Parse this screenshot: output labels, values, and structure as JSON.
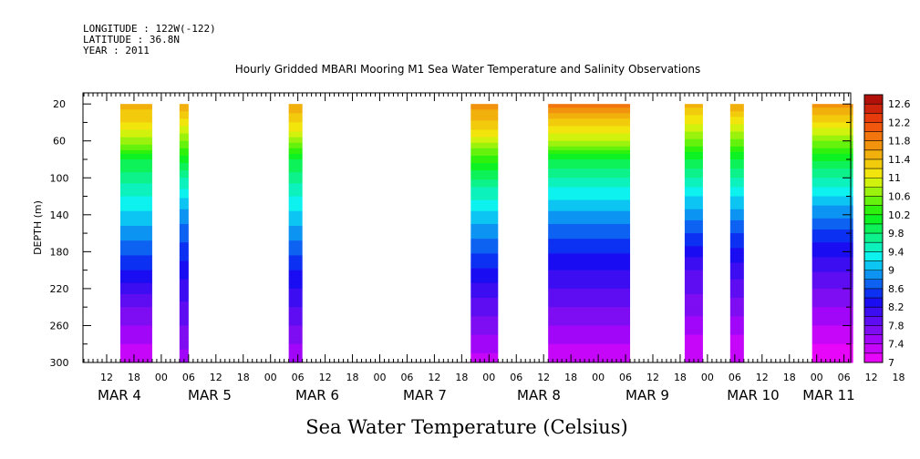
{
  "header": {
    "longitude": "LONGITUDE : 122W(-122)",
    "latitude": "LATITUDE : 36.8N",
    "year": "YEAR : 2011"
  },
  "chart_data": {
    "type": "heatmap",
    "title": "Hourly Gridded MBARI Mooring M1 Sea Water Temperature and Salinity Observations",
    "xlabel": "Sea Water Temperature (Celsius)",
    "ylabel": "DEPTH (m)",
    "y_ticks": [
      20,
      60,
      100,
      140,
      180,
      220,
      260,
      300
    ],
    "ylim": [
      300,
      8
    ],
    "x_hour_ticks": [
      "12",
      "18",
      "00",
      "06",
      "12",
      "18",
      "00",
      "06",
      "12",
      "18",
      "00",
      "06",
      "12",
      "18",
      "00",
      "06",
      "12",
      "18",
      "00",
      "06",
      "12",
      "18",
      "00",
      "06",
      "12",
      "18",
      "00",
      "06",
      "12",
      "18",
      "00",
      "06"
    ],
    "x_day_labels": [
      "MAR 4",
      "MAR 5",
      "MAR 6",
      "MAR 7",
      "MAR 8",
      "MAR 9",
      "MAR 10",
      "MAR 11"
    ],
    "colorbar": {
      "min": 7.0,
      "max": 12.8,
      "step": 0.2,
      "tick_labels": [
        "12.6",
        "12.2",
        "11.8",
        "11.4",
        "11",
        "10.6",
        "10.2",
        "9.8",
        "9.4",
        "9",
        "8.6",
        "8.2",
        "7.8",
        "7.4",
        "7"
      ]
    },
    "series": [
      {
        "start": "MAR 4 15:00",
        "end": "MAR 4 22:00",
        "profile": [
          {
            "depth": 20,
            "temp": 11.5
          },
          {
            "depth": 40,
            "temp": 11.2
          },
          {
            "depth": 65,
            "temp": 10.6
          },
          {
            "depth": 80,
            "temp": 10.0
          },
          {
            "depth": 120,
            "temp": 9.4
          },
          {
            "depth": 160,
            "temp": 8.9
          },
          {
            "depth": 200,
            "temp": 8.4
          },
          {
            "depth": 240,
            "temp": 7.8
          },
          {
            "depth": 270,
            "temp": 7.5
          },
          {
            "depth": 300,
            "temp": 7.2
          }
        ]
      },
      {
        "start": "MAR 5 04:00",
        "end": "MAR 5 06:00",
        "profile": [
          {
            "depth": 20,
            "temp": 11.6
          },
          {
            "depth": 60,
            "temp": 10.6
          },
          {
            "depth": 100,
            "temp": 9.6
          },
          {
            "depth": 140,
            "temp": 8.9
          },
          {
            "depth": 180,
            "temp": 8.5
          },
          {
            "depth": 220,
            "temp": 8.1
          },
          {
            "depth": 260,
            "temp": 7.8
          },
          {
            "depth": 300,
            "temp": 7.5
          }
        ]
      },
      {
        "start": "MAR 6 04:00",
        "end": "MAR 6 07:00",
        "profile": [
          {
            "depth": 20,
            "temp": 11.6
          },
          {
            "depth": 50,
            "temp": 11.0
          },
          {
            "depth": 80,
            "temp": 10.0
          },
          {
            "depth": 120,
            "temp": 9.4
          },
          {
            "depth": 160,
            "temp": 8.9
          },
          {
            "depth": 200,
            "temp": 8.4
          },
          {
            "depth": 240,
            "temp": 8.0
          },
          {
            "depth": 270,
            "temp": 7.7
          },
          {
            "depth": 300,
            "temp": 7.4
          }
        ]
      },
      {
        "start": "MAR 7 20:00",
        "end": "MAR 8 02:00",
        "profile": [
          {
            "depth": 20,
            "temp": 11.7
          },
          {
            "depth": 45,
            "temp": 11.3
          },
          {
            "depth": 75,
            "temp": 10.4
          },
          {
            "depth": 110,
            "temp": 9.6
          },
          {
            "depth": 150,
            "temp": 9.0
          },
          {
            "depth": 190,
            "temp": 8.5
          },
          {
            "depth": 230,
            "temp": 8.0
          },
          {
            "depth": 270,
            "temp": 7.6
          },
          {
            "depth": 300,
            "temp": 7.3
          }
        ]
      },
      {
        "start": "MAR 8 13:00",
        "end": "MAR 9 07:00",
        "profile": [
          {
            "depth": 20,
            "temp": 11.9
          },
          {
            "depth": 40,
            "temp": 11.3
          },
          {
            "depth": 60,
            "temp": 10.8
          },
          {
            "depth": 80,
            "temp": 10.0
          },
          {
            "depth": 110,
            "temp": 9.4
          },
          {
            "depth": 150,
            "temp": 8.8
          },
          {
            "depth": 190,
            "temp": 8.3
          },
          {
            "depth": 230,
            "temp": 7.9
          },
          {
            "depth": 270,
            "temp": 7.5
          },
          {
            "depth": 300,
            "temp": 7.2
          }
        ]
      },
      {
        "start": "MAR 9 19:00",
        "end": "MAR 9 23:00",
        "profile": [
          {
            "depth": 20,
            "temp": 11.5
          },
          {
            "depth": 50,
            "temp": 10.8
          },
          {
            "depth": 80,
            "temp": 10.0
          },
          {
            "depth": 120,
            "temp": 9.2
          },
          {
            "depth": 160,
            "temp": 8.6
          },
          {
            "depth": 200,
            "temp": 8.0
          },
          {
            "depth": 240,
            "temp": 7.7
          },
          {
            "depth": 270,
            "temp": 7.4
          },
          {
            "depth": 300,
            "temp": 7.2
          }
        ]
      },
      {
        "start": "MAR 10 05:00",
        "end": "MAR 10 08:00",
        "profile": [
          {
            "depth": 20,
            "temp": 11.6
          },
          {
            "depth": 50,
            "temp": 10.8
          },
          {
            "depth": 80,
            "temp": 10.0
          },
          {
            "depth": 120,
            "temp": 9.2
          },
          {
            "depth": 160,
            "temp": 8.6
          },
          {
            "depth": 200,
            "temp": 8.1
          },
          {
            "depth": 240,
            "temp": 7.7
          },
          {
            "depth": 270,
            "temp": 7.4
          },
          {
            "depth": 300,
            "temp": 7.2
          }
        ]
      },
      {
        "start": "MAR 10 23:00",
        "end": "MAR 11 08:00",
        "profile": [
          {
            "depth": 20,
            "temp": 11.7
          },
          {
            "depth": 40,
            "temp": 11.2
          },
          {
            "depth": 60,
            "temp": 10.6
          },
          {
            "depth": 90,
            "temp": 9.8
          },
          {
            "depth": 130,
            "temp": 9.0
          },
          {
            "depth": 170,
            "temp": 8.4
          },
          {
            "depth": 210,
            "temp": 7.9
          },
          {
            "depth": 250,
            "temp": 7.5
          },
          {
            "depth": 280,
            "temp": 7.2
          },
          {
            "depth": 300,
            "temp": 7.0
          }
        ]
      }
    ]
  }
}
